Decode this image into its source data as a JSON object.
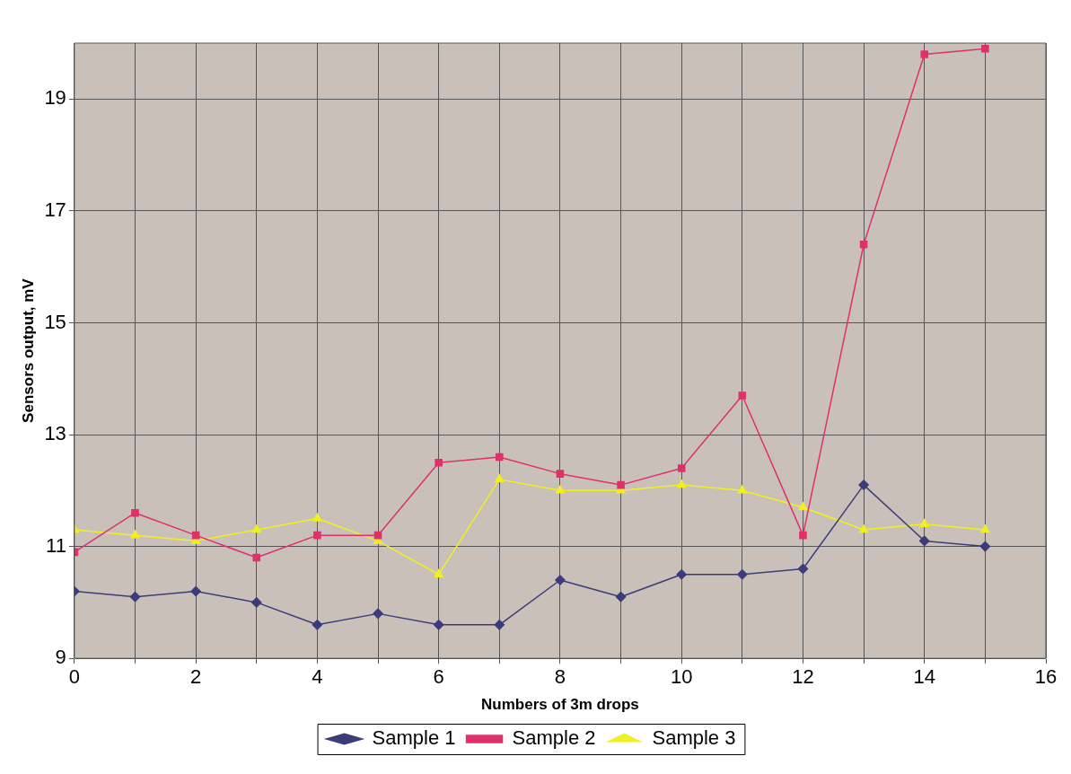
{
  "chart_data": {
    "type": "line",
    "xlabel": "Numbers of 3m drops",
    "ylabel": "Sensors output, mV",
    "x": [
      0,
      1,
      2,
      3,
      4,
      5,
      6,
      7,
      8,
      9,
      10,
      11,
      12,
      13,
      14,
      15
    ],
    "series": [
      {
        "name": "Sample 1",
        "color": "#3c3c7c",
        "marker": "diamond",
        "values": [
          10.2,
          10.1,
          10.2,
          10.0,
          9.6,
          9.8,
          9.6,
          9.6,
          10.4,
          10.1,
          10.5,
          10.5,
          10.6,
          12.1,
          11.1,
          11.0
        ]
      },
      {
        "name": "Sample 2",
        "color": "#e0306a",
        "marker": "square",
        "values": [
          10.9,
          11.6,
          11.2,
          10.8,
          11.2,
          11.2,
          12.5,
          12.6,
          12.3,
          12.1,
          12.4,
          13.7,
          11.2,
          16.4,
          19.8,
          19.9
        ]
      },
      {
        "name": "Sample 3",
        "color": "#f0f020",
        "marker": "triangle",
        "values": [
          11.3,
          11.2,
          11.1,
          11.3,
          11.5,
          11.1,
          10.5,
          12.2,
          12.0,
          12.0,
          12.1,
          12.0,
          11.7,
          11.3,
          11.4,
          11.3
        ]
      }
    ],
    "xlim": [
      0,
      16
    ],
    "xticks": [
      0,
      {
        "value": 1,
        "label": null
      },
      2,
      {
        "value": 3,
        "label": null
      },
      4,
      {
        "value": 5,
        "label": null
      },
      6,
      {
        "value": 7,
        "label": null
      },
      8,
      {
        "value": 9,
        "label": null
      },
      10,
      {
        "value": 11,
        "label": null
      },
      12,
      {
        "value": 13,
        "label": null
      },
      14,
      {
        "value": 15,
        "label": null
      },
      16
    ],
    "ylim": [
      9,
      20
    ],
    "yticks": [
      9,
      11,
      13,
      15,
      17,
      19
    ],
    "grid": true,
    "legend": "bottom",
    "line_style": "solid"
  }
}
